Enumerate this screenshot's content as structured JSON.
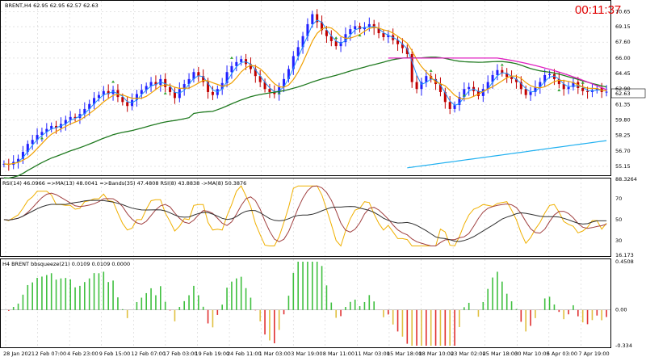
{
  "colors": {
    "up": "#2020ff",
    "down": "#c00000",
    "ma_fast": "#1e90ff",
    "ma_mid": "#f0a000",
    "ma_slow": "#207a20",
    "ma_long": "#e020c0",
    "ma_trend": "#20b0f0",
    "rsi": "#f0b000",
    "rsi_ma": "#a04040",
    "rsi_bands": "#303030",
    "sq_pos": "#40c040",
    "sq_neg": "#e03030",
    "sq_neg2": "#e0c040",
    "grid": "#c8c8c8",
    "arrow": "#30a030"
  },
  "header": {
    "title": "BRENT,H4  62.95 62.95 62.57 62.63",
    "timer": "00:11:37",
    "price_tag": "62.63"
  },
  "main_panel": {
    "yticks": [
      "70.65",
      "69.15",
      "67.60",
      "66.00",
      "64.45",
      "62.90",
      "61.35",
      "59.80",
      "58.25",
      "56.70",
      "55.15"
    ],
    "ylim": [
      54.5,
      71.5
    ]
  },
  "rsi_panel": {
    "title": "RSI(14) 46.0966  =>MA(13) 48.0041  =>Bands(35) 47.4808  RSI(8) 43.8838  ->MA(8) 50.3876",
    "yticks": [
      "88.3264",
      "70",
      "50",
      "30",
      "16.173"
    ],
    "ylim": [
      16.173,
      88.3264
    ]
  },
  "sq_panel": {
    "title": "H4 BRENT bbsqueeze(21) 0.0109 0.0109 0.0000",
    "yticks": [
      "0.4508",
      "0.00",
      "-0.334"
    ],
    "ylim": [
      -0.334,
      0.4508
    ]
  },
  "xaxis": {
    "labels": [
      "28 Jan 2021",
      "2 Feb 07:00",
      "4 Feb 23:00",
      "9 Feb 15:00",
      "12 Feb 07:00",
      "17 Feb 03:00",
      "19 Feb 19:00",
      "24 Feb 11:00",
      "1 Mar 03:00",
      "3 Mar 19:00",
      "8 Mar 11:00",
      "11 Mar 03:00",
      "15 Mar 18:00",
      "18 Mar 10:00",
      "23 Mar 02:00",
      "25 Mar 18:00",
      "30 Mar 10:00",
      "5 Apr 03:00",
      "7 Apr 19:00"
    ]
  },
  "chart_data": {
    "type": "candlestick",
    "series": [
      {
        "name": "BRENT,H4",
        "points": [
          55.4,
          55.3,
          55.6,
          55.9,
          56.6,
          57.4,
          57.8,
          58.3,
          58.6,
          58.9,
          59.2,
          59.0,
          59.4,
          59.8,
          60.1,
          60.0,
          60.4,
          60.9,
          61.4,
          62.0,
          62.3,
          62.7,
          62.4,
          62.8,
          62.1,
          61.6,
          61.2,
          61.8,
          62.4,
          62.8,
          63.2,
          63.6,
          63.3,
          63.9,
          63.1,
          62.6,
          62.0,
          62.9,
          63.4,
          63.9,
          64.6,
          64.2,
          63.6,
          62.6,
          62.3,
          62.9,
          63.5,
          64.6,
          65.2,
          65.6,
          65.9,
          65.4,
          64.9,
          64.2,
          63.6,
          62.9,
          62.6,
          62.4,
          63.1,
          63.9,
          64.9,
          66.2,
          67.1,
          68.2,
          69.4,
          70.4,
          69.6,
          68.8,
          68.2,
          67.7,
          67.2,
          67.6,
          68.4,
          68.9,
          69.2,
          68.9,
          69.1,
          69.4,
          69.0,
          68.5,
          68.1,
          68.3,
          67.8,
          67.4,
          67.0,
          66.4,
          63.6,
          62.9,
          63.6,
          64.2,
          63.9,
          63.4,
          62.6,
          61.6,
          60.9,
          61.3,
          62.1,
          62.9,
          63.1,
          62.7,
          62.2,
          62.9,
          63.6,
          64.3,
          64.8,
          64.5,
          64.1,
          63.9,
          63.6,
          62.9,
          62.3,
          62.6,
          63.1,
          63.6,
          64.3,
          64.4,
          63.9,
          63.4,
          62.9,
          63.1,
          63.6,
          63.0,
          62.7,
          62.6,
          62.8,
          63.0,
          62.6,
          62.63
        ]
      }
    ]
  }
}
